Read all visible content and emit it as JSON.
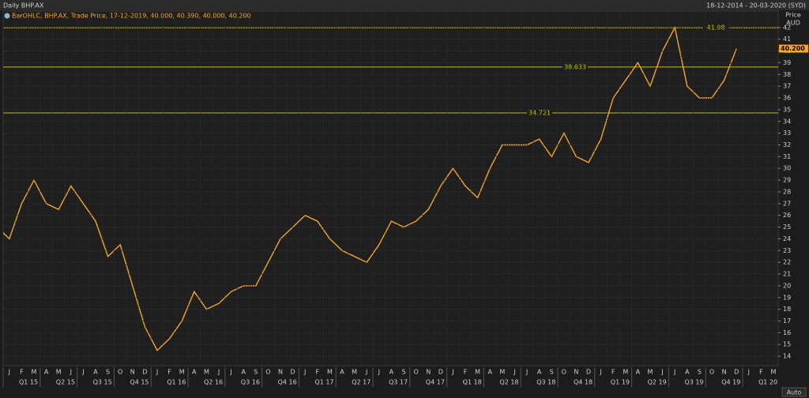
{
  "chart_data": {
    "type": "line",
    "title": "Daily BHP.AX",
    "subtitle": "18-12-2014 - 20-03-2020 (SYD)",
    "legend": "BarOHLC, BHP.AX, Trade Price, 17-12-2019, 40.000, 40.390, 40.000, 40.200",
    "y_axis_label": "Price",
    "y_axis_unit": "AUD",
    "button": "Auto",
    "color": "#f5a623",
    "x": [
      "2014-12",
      "2015-01",
      "2015-02",
      "2015-03",
      "2015-04",
      "2015-05",
      "2015-06",
      "2015-07",
      "2015-08",
      "2015-09",
      "2015-10",
      "2015-11",
      "2015-12",
      "2016-01",
      "2016-02",
      "2016-03",
      "2016-04",
      "2016-05",
      "2016-06",
      "2016-07",
      "2016-08",
      "2016-09",
      "2016-10",
      "2016-11",
      "2016-12",
      "2017-01",
      "2017-02",
      "2017-03",
      "2017-04",
      "2017-05",
      "2017-06",
      "2017-07",
      "2017-08",
      "2017-09",
      "2017-10",
      "2017-11",
      "2017-12",
      "2018-01",
      "2018-02",
      "2018-03",
      "2018-04",
      "2018-05",
      "2018-06",
      "2018-07",
      "2018-08",
      "2018-09",
      "2018-10",
      "2018-11",
      "2018-12",
      "2019-01",
      "2019-02",
      "2019-03",
      "2019-04",
      "2019-05",
      "2019-06",
      "2019-07",
      "2019-08",
      "2019-09",
      "2019-10",
      "2019-11",
      "2019-12"
    ],
    "values": [
      25,
      24,
      27,
      29,
      27,
      26.5,
      28.5,
      27,
      25.5,
      22.5,
      23.5,
      20,
      16.5,
      14.5,
      15.5,
      17,
      19.5,
      18,
      18.5,
      19.5,
      20,
      20,
      22,
      24,
      25,
      26,
      25.5,
      24,
      23,
      22.5,
      22,
      23.5,
      25.5,
      25,
      25.5,
      26.5,
      28.5,
      30,
      28.5,
      27.5,
      30,
      32,
      32,
      32,
      32.5,
      31,
      33,
      31,
      30.5,
      32.5,
      36,
      37.5,
      39,
      37,
      40,
      42,
      37,
      36,
      36,
      37.5,
      40.2
    ],
    "last_price": {
      "value": 40.2,
      "label": "40.200"
    },
    "levels": [
      41.98,
      38.633,
      34.721
    ],
    "level_color": "#c8c000",
    "ylim": [
      13.2,
      43.4
    ],
    "yticks": [
      14,
      15,
      16,
      17,
      18,
      19,
      20,
      21,
      22,
      23,
      24,
      25,
      26,
      27,
      28,
      29,
      30,
      31,
      32,
      33,
      34,
      35,
      36,
      37,
      38,
      39,
      40,
      41,
      42
    ],
    "xticks": [
      {
        "value": "2015-01",
        "label": "J"
      },
      {
        "value": "2015-02",
        "label": "F"
      },
      {
        "value": "2015-03",
        "label": "M"
      },
      {
        "value": "2015-04",
        "label": "A"
      },
      {
        "value": "2015-05",
        "label": "M"
      },
      {
        "value": "2015-06",
        "label": "J"
      },
      {
        "value": "2015-07",
        "label": "J"
      },
      {
        "value": "2015-08",
        "label": "A"
      },
      {
        "value": "2015-09",
        "label": "S"
      },
      {
        "value": "2015-10",
        "label": "O"
      },
      {
        "value": "2015-11",
        "label": "N"
      },
      {
        "value": "2015-12",
        "label": "D"
      },
      {
        "value": "2016-01",
        "label": "J"
      },
      {
        "value": "2016-02",
        "label": "F"
      },
      {
        "value": "2016-03",
        "label": "M"
      },
      {
        "value": "2016-04",
        "label": "A"
      },
      {
        "value": "2016-05",
        "label": "M"
      },
      {
        "value": "2016-06",
        "label": "J"
      },
      {
        "value": "2016-07",
        "label": "J"
      },
      {
        "value": "2016-08",
        "label": "A"
      },
      {
        "value": "2016-09",
        "label": "S"
      },
      {
        "value": "2016-10",
        "label": "O"
      },
      {
        "value": "2016-11",
        "label": "N"
      },
      {
        "value": "2016-12",
        "label": "D"
      },
      {
        "value": "2017-01",
        "label": "J"
      },
      {
        "value": "2017-02",
        "label": "F"
      },
      {
        "value": "2017-03",
        "label": "M"
      },
      {
        "value": "2017-04",
        "label": "A"
      },
      {
        "value": "2017-05",
        "label": "M"
      },
      {
        "value": "2017-06",
        "label": "J"
      },
      {
        "value": "2017-07",
        "label": "J"
      },
      {
        "value": "2017-08",
        "label": "A"
      },
      {
        "value": "2017-09",
        "label": "S"
      },
      {
        "value": "2017-10",
        "label": "O"
      },
      {
        "value": "2017-11",
        "label": "N"
      },
      {
        "value": "2017-12",
        "label": "D"
      },
      {
        "value": "2018-01",
        "label": "J"
      },
      {
        "value": "2018-02",
        "label": "F"
      },
      {
        "value": "2018-03",
        "label": "M"
      },
      {
        "value": "2018-04",
        "label": "A"
      },
      {
        "value": "2018-05",
        "label": "M"
      },
      {
        "value": "2018-06",
        "label": "J"
      },
      {
        "value": "2018-07",
        "label": "J"
      },
      {
        "value": "2018-08",
        "label": "A"
      },
      {
        "value": "2018-09",
        "label": "S"
      },
      {
        "value": "2018-10",
        "label": "O"
      },
      {
        "value": "2018-11",
        "label": "N"
      },
      {
        "value": "2018-12",
        "label": "D"
      },
      {
        "value": "2019-01",
        "label": "J"
      },
      {
        "value": "2019-02",
        "label": "F"
      },
      {
        "value": "2019-03",
        "label": "M"
      },
      {
        "value": "2019-04",
        "label": "A"
      },
      {
        "value": "2019-05",
        "label": "M"
      },
      {
        "value": "2019-06",
        "label": "J"
      },
      {
        "value": "2019-07",
        "label": "J"
      },
      {
        "value": "2019-08",
        "label": "A"
      },
      {
        "value": "2019-09",
        "label": "S"
      },
      {
        "value": "2019-10",
        "label": "O"
      },
      {
        "value": "2019-11",
        "label": "N"
      },
      {
        "value": "2019-12",
        "label": "D"
      },
      {
        "value": "2020-01",
        "label": "J"
      },
      {
        "value": "2020-02",
        "label": "F"
      },
      {
        "value": "2020-03",
        "label": "M"
      }
    ],
    "quarter_ticks": [
      {
        "value": "2015-01",
        "label": "Q1 15"
      },
      {
        "value": "2015-04",
        "label": "Q2 15"
      },
      {
        "value": "2015-07",
        "label": "Q3 15"
      },
      {
        "value": "2015-10",
        "label": "Q4 15"
      },
      {
        "value": "2016-01",
        "label": "Q1 16"
      },
      {
        "value": "2016-04",
        "label": "Q2 16"
      },
      {
        "value": "2016-07",
        "label": "Q3 16"
      },
      {
        "value": "2016-10",
        "label": "Q4 16"
      },
      {
        "value": "2017-01",
        "label": "Q1 17"
      },
      {
        "value": "2017-04",
        "label": "Q2 17"
      },
      {
        "value": "2017-07",
        "label": "Q3 17"
      },
      {
        "value": "2017-10",
        "label": "Q4 17"
      },
      {
        "value": "2018-01",
        "label": "Q1 18"
      },
      {
        "value": "2018-04",
        "label": "Q2 18"
      },
      {
        "value": "2018-07",
        "label": "Q3 18"
      },
      {
        "value": "2018-10",
        "label": "Q4 18"
      },
      {
        "value": "2019-01",
        "label": "Q1 19"
      },
      {
        "value": "2019-04",
        "label": "Q2 19"
      },
      {
        "value": "2019-07",
        "label": "Q3 19"
      },
      {
        "value": "2019-10",
        "label": "Q4 19"
      },
      {
        "value": "2020-01",
        "label": "Q1 20"
      }
    ],
    "grid": true
  }
}
